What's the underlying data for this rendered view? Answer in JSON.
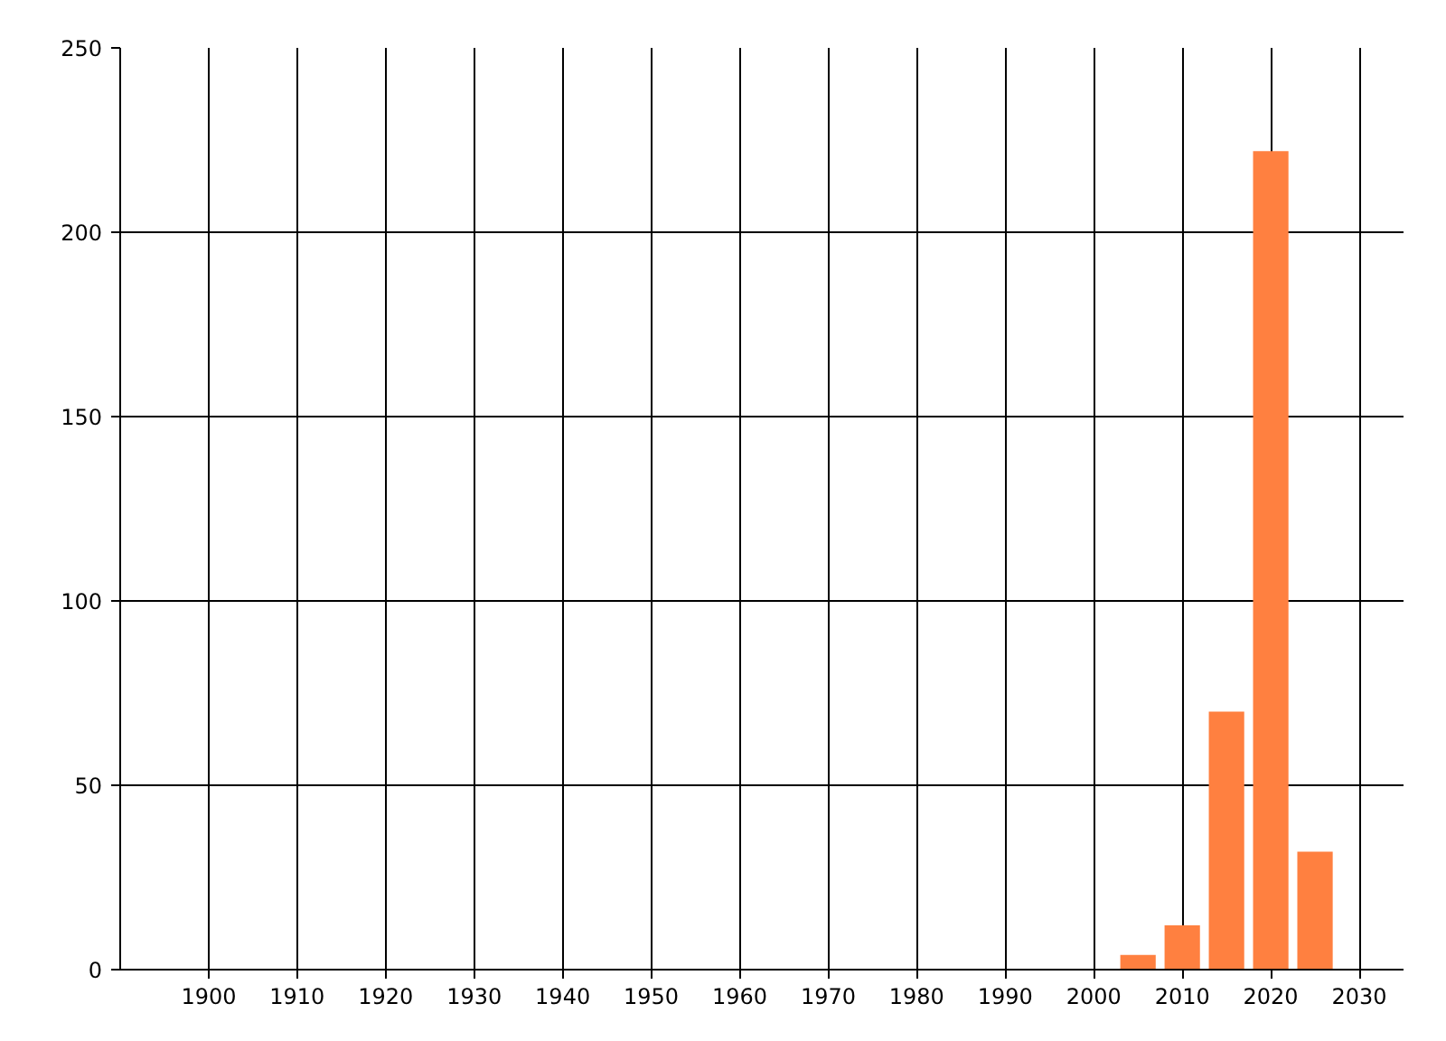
{
  "chart_data": {
    "type": "bar",
    "x": [
      2005,
      2010,
      2015,
      2020,
      2025
    ],
    "values": [
      4,
      12,
      70,
      222,
      32
    ],
    "color": "#ff8040",
    "xlim": [
      1890,
      2035
    ],
    "xticks": [
      1900,
      1910,
      1920,
      1930,
      1940,
      1950,
      1960,
      1970,
      1980,
      1990,
      2000,
      2010,
      2020,
      2030
    ],
    "ylim": [
      0,
      250
    ],
    "yticks": [
      0,
      50,
      100,
      150,
      200,
      250
    ],
    "grid": true
  }
}
